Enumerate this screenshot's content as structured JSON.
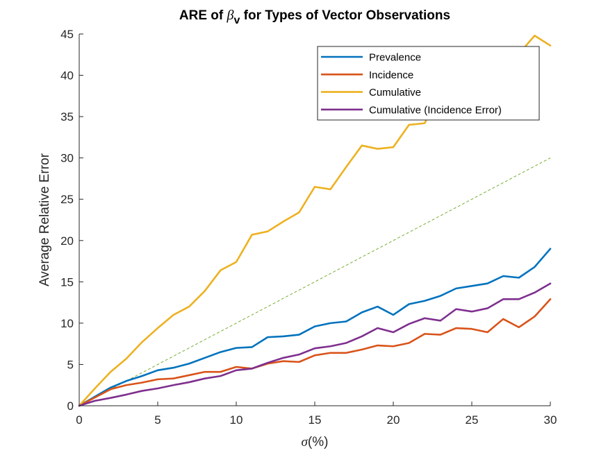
{
  "chart_data": {
    "type": "line",
    "title_prefix": "ARE of ",
    "title_symbol": "β",
    "title_subscript": "v",
    "title_suffix": " for Types of Vector Observations",
    "xlabel_symbol": "σ",
    "xlabel_suffix": "(%)",
    "ylabel": "Average Relative Error",
    "xlim": [
      0,
      30
    ],
    "ylim": [
      0,
      45
    ],
    "xticks": [
      0,
      5,
      10,
      15,
      20,
      25,
      30
    ],
    "yticks": [
      0,
      5,
      10,
      15,
      20,
      25,
      30,
      35,
      40,
      45
    ],
    "grid": false,
    "legend_position": "top-right",
    "x": [
      0,
      1,
      2,
      3,
      4,
      5,
      6,
      7,
      8,
      9,
      10,
      11,
      12,
      13,
      14,
      15,
      16,
      17,
      18,
      19,
      20,
      21,
      22,
      23,
      24,
      25,
      26,
      27,
      28,
      29,
      30
    ],
    "series": [
      {
        "name": "Prevalence",
        "color": "#0072BD",
        "style": "solid",
        "values": [
          0,
          1.1,
          2.2,
          3.0,
          3.6,
          4.3,
          4.6,
          5.1,
          5.8,
          6.5,
          7.0,
          7.1,
          8.3,
          8.4,
          8.6,
          9.6,
          10.0,
          10.2,
          11.3,
          12.0,
          11.0,
          12.3,
          12.7,
          13.3,
          14.2,
          14.5,
          14.8,
          15.7,
          15.5,
          16.8,
          19.0
        ]
      },
      {
        "name": "Incidence",
        "color": "#D95319",
        "style": "solid",
        "values": [
          0,
          1.0,
          2.0,
          2.5,
          2.8,
          3.2,
          3.3,
          3.7,
          4.1,
          4.1,
          4.7,
          4.5,
          5.1,
          5.4,
          5.3,
          6.1,
          6.4,
          6.4,
          6.8,
          7.3,
          7.2,
          7.6,
          8.7,
          8.6,
          9.4,
          9.3,
          8.9,
          10.5,
          9.5,
          10.8,
          12.9
        ]
      },
      {
        "name": "Cumulative",
        "color": "#EDB120",
        "style": "solid",
        "values": [
          0,
          2.1,
          4.1,
          5.7,
          7.7,
          9.4,
          11.0,
          12.0,
          13.9,
          16.4,
          17.4,
          20.7,
          21.1,
          22.3,
          23.4,
          26.5,
          26.2,
          28.9,
          31.5,
          31.1,
          31.3,
          34.0,
          34.2,
          38.0,
          40.0,
          41.5,
          42.0,
          42.5,
          42.6,
          44.8,
          43.6
        ]
      },
      {
        "name": "Cumulative (Incidence Error)",
        "color": "#7E2F8E",
        "style": "solid",
        "values": [
          0,
          0.6,
          0.95,
          1.35,
          1.8,
          2.1,
          2.5,
          2.85,
          3.3,
          3.6,
          4.3,
          4.5,
          5.2,
          5.8,
          6.2,
          6.95,
          7.2,
          7.6,
          8.4,
          9.4,
          8.9,
          9.9,
          10.6,
          10.3,
          11.7,
          11.4,
          11.8,
          12.9,
          12.9,
          13.7,
          14.8
        ]
      }
    ],
    "reference_line": {
      "color": "#77AC30",
      "style": "dashed",
      "x": [
        0,
        30
      ],
      "y": [
        0,
        30
      ]
    }
  }
}
